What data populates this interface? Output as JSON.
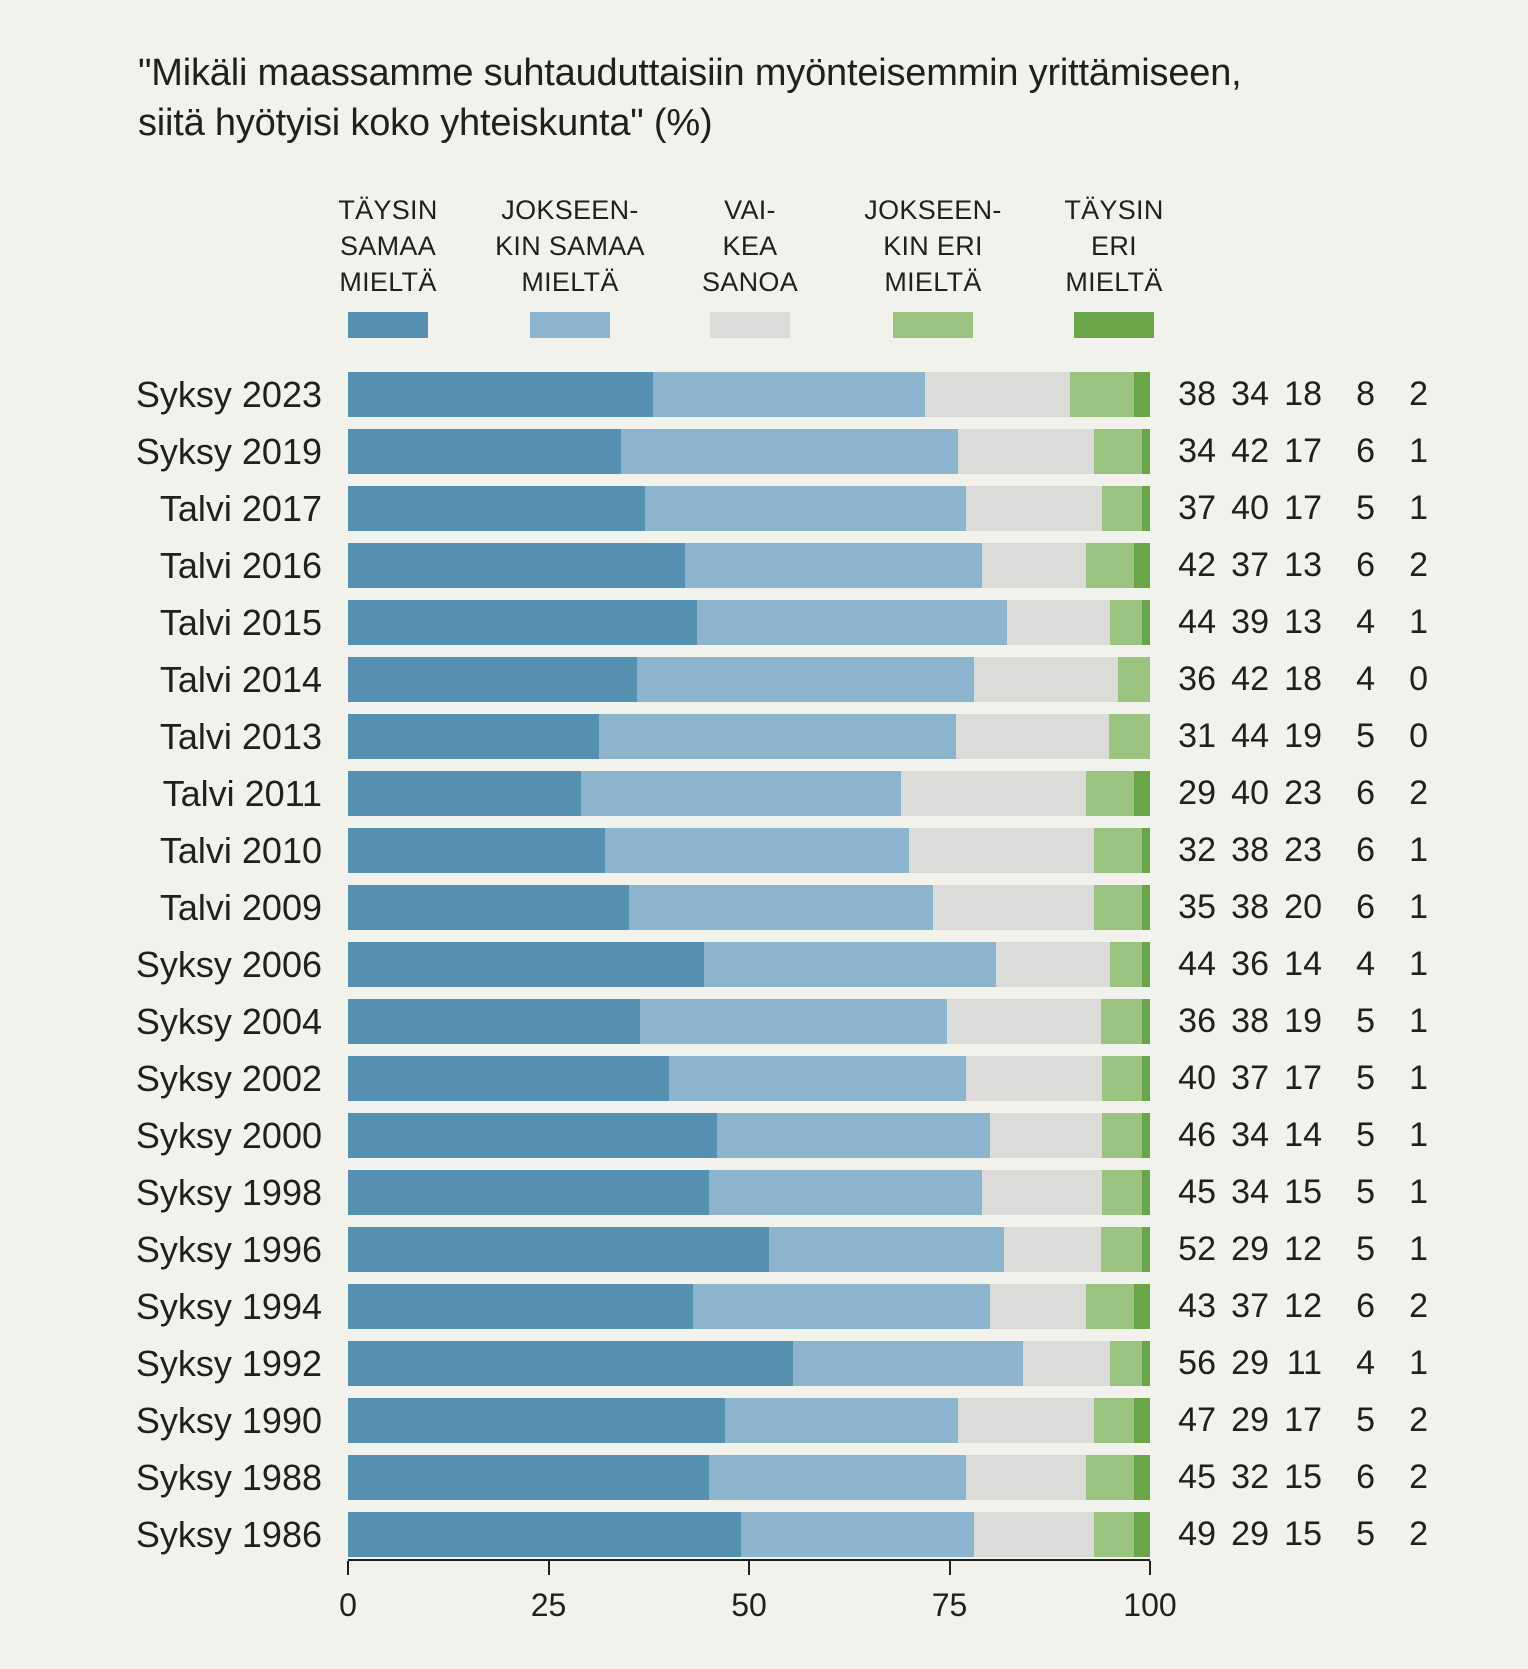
{
  "title": "\"Mikäli maassamme suhtauduttaisiin myönteisemmin yrittämiseen,\n siitä hyötyisi koko yhteiskunta\" (%)",
  "colors": {
    "background": "#F2F2ED",
    "text": "#202020",
    "series": [
      "#5690B0",
      "#8DB4CD",
      "#DBDBDA",
      "#9DC383",
      "#6BA54A"
    ]
  },
  "legend": {
    "items": [
      {
        "label_lines": [
          "TÄYSIN",
          "SAMAA",
          "MIELTÄ"
        ],
        "color": "#5690B0"
      },
      {
        "label_lines": [
          "JOKSEEN-",
          "KIN SAMAA",
          "MIELTÄ"
        ],
        "color": "#8DB4CD"
      },
      {
        "label_lines": [
          "VAI-",
          "KEA",
          "SANOA"
        ],
        "color": "#DBDBDA"
      },
      {
        "label_lines": [
          "JOKSEEN-",
          "KIN ERI",
          "MIELTÄ"
        ],
        "color": "#9DC383"
      },
      {
        "label_lines": [
          "TÄYSIN",
          "ERI",
          "MIELTÄ"
        ],
        "color": "#6BA54A"
      }
    ]
  },
  "chart_data": {
    "type": "bar",
    "orientation": "horizontal",
    "stacked": true,
    "unit": "%",
    "title": "\"Mikäli maassamme suhtauduttaisiin myönteisemmin yrittämiseen, siitä hyötyisi koko yhteiskunta\" (%)",
    "xlabel": "",
    "ylabel": "",
    "xlim": [
      0,
      100
    ],
    "x_ticks": [
      0,
      25,
      50,
      75,
      100
    ],
    "legend_position": "top",
    "value_labels_shown": true,
    "categories": [
      "Syksy 2023",
      "Syksy 2019",
      "Talvi 2017",
      "Talvi 2016",
      "Talvi 2015",
      "Talvi 2014",
      "Talvi 2013",
      "Talvi 2011",
      "Talvi 2010",
      "Talvi 2009",
      "Syksy 2006",
      "Syksy 2004",
      "Syksy 2002",
      "Syksy 2000",
      "Syksy 1998",
      "Syksy 1996",
      "Syksy 1994",
      "Syksy 1992",
      "Syksy 1990",
      "Syksy 1988",
      "Syksy 1986"
    ],
    "series": [
      {
        "name": "TÄYSIN SAMAA MIELTÄ",
        "color": "#5690B0",
        "values": [
          38,
          34,
          37,
          42,
          44,
          36,
          31,
          29,
          32,
          35,
          44,
          36,
          40,
          46,
          45,
          52,
          43,
          56,
          47,
          45,
          49
        ]
      },
      {
        "name": "JOKSEENKIN SAMAA MIELTÄ",
        "color": "#8DB4CD",
        "values": [
          34,
          42,
          40,
          37,
          39,
          42,
          44,
          40,
          38,
          38,
          36,
          38,
          37,
          34,
          34,
          29,
          37,
          29,
          29,
          32,
          29
        ]
      },
      {
        "name": "VAIKEA SANOA",
        "color": "#DBDBDA",
        "values": [
          18,
          17,
          17,
          13,
          13,
          18,
          19,
          23,
          23,
          20,
          14,
          19,
          17,
          14,
          15,
          12,
          12,
          11,
          17,
          15,
          15
        ]
      },
      {
        "name": "JOKSEENKIN ERI MIELTÄ",
        "color": "#9DC383",
        "values": [
          8,
          6,
          5,
          6,
          4,
          4,
          5,
          6,
          6,
          6,
          4,
          5,
          5,
          5,
          5,
          5,
          6,
          4,
          5,
          6,
          5
        ]
      },
      {
        "name": "TÄYSIN ERI MIELTÄ",
        "color": "#6BA54A",
        "values": [
          2,
          1,
          1,
          2,
          1,
          0,
          0,
          2,
          1,
          1,
          1,
          1,
          1,
          1,
          1,
          1,
          2,
          1,
          2,
          2,
          2
        ]
      }
    ]
  }
}
